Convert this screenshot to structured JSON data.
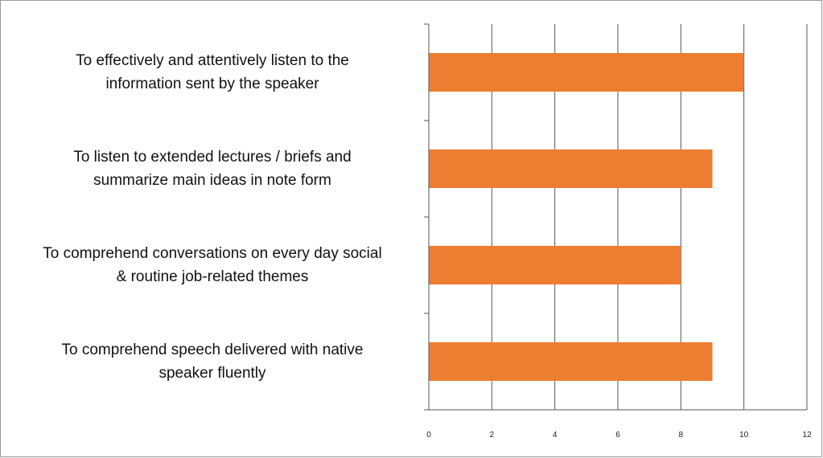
{
  "chart_data": {
    "type": "bar",
    "orientation": "horizontal",
    "categories": [
      "To effectively and attentively listen to the\ninformation sent by the speaker",
      "To listen to extended lectures / briefs and\nsummarize main ideas in note form",
      "To comprehend conversations on every day social\n& routine job-related themes",
      "To comprehend speech delivered with native\nspeaker fluently"
    ],
    "values": [
      10,
      9,
      8,
      9
    ],
    "color": "#ed7d31",
    "xlim": [
      0,
      12
    ],
    "xticks": [
      0,
      2,
      4,
      6,
      8,
      10,
      12
    ],
    "grid": true
  }
}
